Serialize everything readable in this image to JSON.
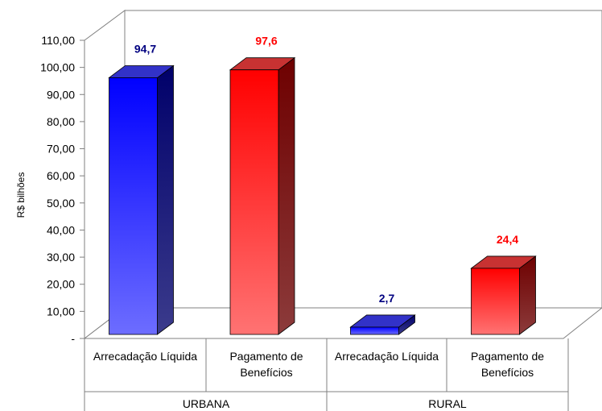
{
  "chart_data": {
    "type": "bar",
    "title": "",
    "xlabel": "",
    "ylabel": "R$ bilhões",
    "ylim": [
      0,
      110
    ],
    "yticks": [
      "-",
      "10,00",
      "20,00",
      "30,00",
      "40,00",
      "50,00",
      "60,00",
      "70,00",
      "80,00",
      "90,00",
      "100,00",
      "110,00"
    ],
    "grid": false,
    "legend": "none",
    "groups": [
      "URBANA",
      "RURAL"
    ],
    "categories": [
      "Arrecadação Líquida",
      "Pagamento de Benefícios",
      "Arrecadação Líquida",
      "Pagamento de Benefícios"
    ],
    "category_group": [
      "URBANA",
      "URBANA",
      "RURAL",
      "RURAL"
    ],
    "values": [
      94.7,
      97.6,
      2.7,
      24.4
    ],
    "value_labels": [
      "94,7",
      "97,6",
      "2,7",
      "24,4"
    ],
    "bar_colors": [
      "#1a1aff",
      "#ff1a1a",
      "#1a1aff",
      "#ff1a1a"
    ],
    "label_colors": [
      "#000080",
      "#ff0000",
      "#000080",
      "#ff0000"
    ]
  }
}
